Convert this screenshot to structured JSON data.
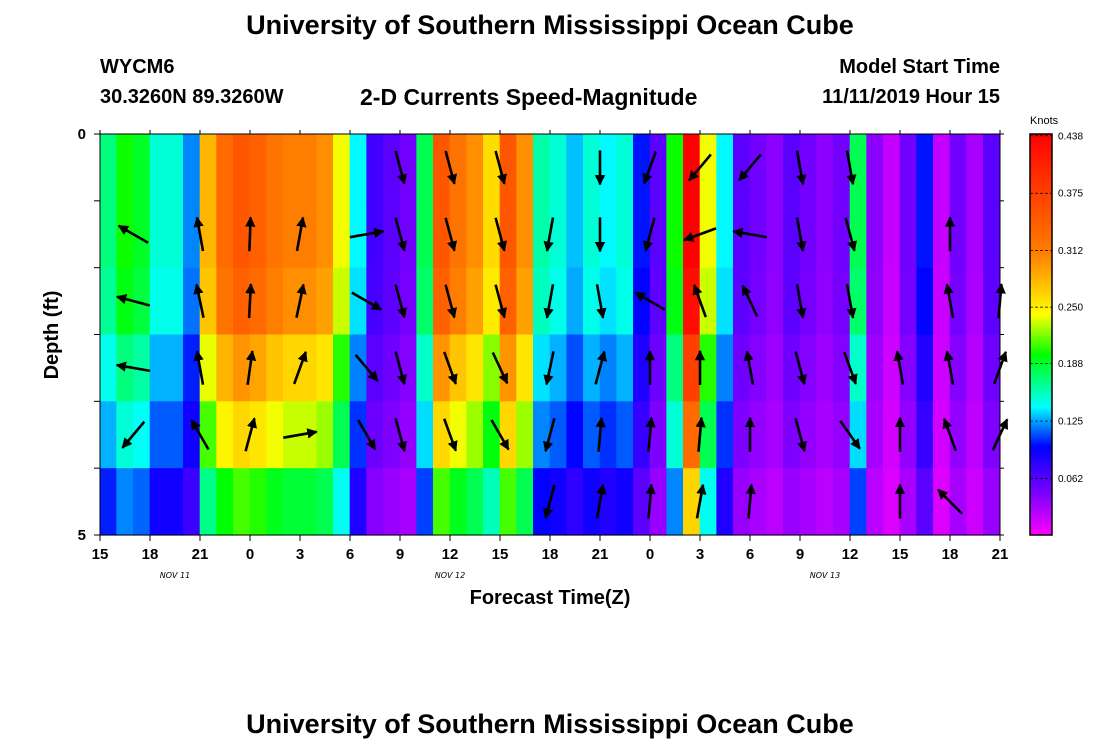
{
  "header": {
    "title": "University of Southern Mississippi Ocean Cube",
    "station_id": "WYCM6",
    "coords": "30.3260N 89.3260W",
    "plot_title": "2-D Currents Speed-Magnitude",
    "model_label": "Model Start Time",
    "model_time": "11/11/2019 Hour 15"
  },
  "footer": {
    "title": "University of Southern Mississippi Ocean Cube"
  },
  "chart_data": {
    "type": "heatmap",
    "xlabel": "Forecast Time(Z)",
    "ylabel": "Depth (ft)",
    "colorbar_label": "Knots",
    "x_ticks": [
      "15",
      "18",
      "21",
      "0",
      "3",
      "6",
      "9",
      "12",
      "15",
      "18",
      "21",
      "0",
      "3",
      "6",
      "9",
      "12",
      "15",
      "18",
      "21"
    ],
    "date_labels": [
      {
        "label": "NOV 11",
        "at_hour_offset": 4.5
      },
      {
        "label": "NOV 12",
        "at_hour_offset": 21
      },
      {
        "label": "NOV 13",
        "at_hour_offset": 43.5
      }
    ],
    "y_ticks": [
      "0",
      "5"
    ],
    "ylim": [
      0,
      5
    ],
    "colorbar_ticks": [
      "0.438",
      "0.375",
      "0.312",
      "0.250",
      "0.188",
      "0.125",
      "0.062"
    ],
    "vmin": 0.0,
    "vmax": 0.44,
    "x_range_hours": [
      0,
      54
    ],
    "time_step_hours": 1,
    "colors": {
      "arrow": "#000000",
      "axis": "#000000"
    },
    "speed_profile": [
      0.17,
      0.2,
      0.19,
      0.15,
      0.15,
      0.12,
      0.28,
      0.33,
      0.35,
      0.34,
      0.32,
      0.31,
      0.31,
      0.3,
      0.24,
      0.14,
      0.07,
      0.06,
      0.05,
      0.18,
      0.35,
      0.32,
      0.3,
      0.26,
      0.35,
      0.3,
      0.16,
      0.15,
      0.13,
      0.15,
      0.14,
      0.15,
      0.1,
      0.06,
      0.2,
      0.44,
      0.24,
      0.14,
      0.06,
      0.05,
      0.04,
      0.06,
      0.05,
      0.04,
      0.05,
      0.18,
      0.04,
      0.02,
      0.05,
      0.1,
      0.02,
      0.05,
      0.03,
      0.06,
      0.05
    ],
    "layer_factors": [
      1.0,
      1.0,
      0.97,
      0.85,
      0.75,
      0.6
    ],
    "arrows": [
      {
        "hour": 2,
        "row": 1,
        "dir": -60
      },
      {
        "hour": 2,
        "row": 2,
        "dir": -75
      },
      {
        "hour": 2,
        "row": 3,
        "dir": -80
      },
      {
        "hour": 2,
        "row": 4,
        "dir": -140
      },
      {
        "hour": 6,
        "row": 1,
        "dir": -10
      },
      {
        "hour": 6,
        "row": 2,
        "dir": -12
      },
      {
        "hour": 6,
        "row": 3,
        "dir": -10
      },
      {
        "hour": 6,
        "row": 4,
        "dir": -30
      },
      {
        "hour": 9,
        "row": 1,
        "dir": 2
      },
      {
        "hour": 9,
        "row": 2,
        "dir": 3
      },
      {
        "hour": 9,
        "row": 3,
        "dir": 8
      },
      {
        "hour": 9,
        "row": 4,
        "dir": 15
      },
      {
        "hour": 12,
        "row": 1,
        "dir": 10
      },
      {
        "hour": 12,
        "row": 2,
        "dir": 12
      },
      {
        "hour": 12,
        "row": 3,
        "dir": 20
      },
      {
        "hour": 12,
        "row": 4,
        "dir": 80
      },
      {
        "hour": 16,
        "row": 1,
        "dir": 80
      },
      {
        "hour": 16,
        "row": 2,
        "dir": 120
      },
      {
        "hour": 16,
        "row": 3,
        "dir": 140
      },
      {
        "hour": 16,
        "row": 4,
        "dir": 150
      },
      {
        "hour": 18,
        "row": 0,
        "dir": 165
      },
      {
        "hour": 18,
        "row": 1,
        "dir": 165
      },
      {
        "hour": 18,
        "row": 2,
        "dir": 165
      },
      {
        "hour": 18,
        "row": 3,
        "dir": 165
      },
      {
        "hour": 18,
        "row": 4,
        "dir": 165
      },
      {
        "hour": 21,
        "row": 0,
        "dir": 165
      },
      {
        "hour": 21,
        "row": 1,
        "dir": 165
      },
      {
        "hour": 21,
        "row": 2,
        "dir": 165
      },
      {
        "hour": 21,
        "row": 3,
        "dir": 160
      },
      {
        "hour": 21,
        "row": 4,
        "dir": 160
      },
      {
        "hour": 24,
        "row": 0,
        "dir": 165
      },
      {
        "hour": 24,
        "row": 1,
        "dir": 165
      },
      {
        "hour": 24,
        "row": 2,
        "dir": 165
      },
      {
        "hour": 24,
        "row": 3,
        "dir": 155
      },
      {
        "hour": 24,
        "row": 4,
        "dir": 150
      },
      {
        "hour": 27,
        "row": 1,
        "dir": -170
      },
      {
        "hour": 27,
        "row": 2,
        "dir": -170
      },
      {
        "hour": 27,
        "row": 3,
        "dir": -168
      },
      {
        "hour": 27,
        "row": 4,
        "dir": -165
      },
      {
        "hour": 27,
        "row": 5,
        "dir": -165
      },
      {
        "hour": 30,
        "row": 0,
        "dir": 180
      },
      {
        "hour": 30,
        "row": 1,
        "dir": 180
      },
      {
        "hour": 30,
        "row": 2,
        "dir": 170
      },
      {
        "hour": 30,
        "row": 3,
        "dir": 15
      },
      {
        "hour": 30,
        "row": 4,
        "dir": 5
      },
      {
        "hour": 30,
        "row": 5,
        "dir": 10
      },
      {
        "hour": 33,
        "row": 0,
        "dir": -160
      },
      {
        "hour": 33,
        "row": 1,
        "dir": -165
      },
      {
        "hour": 33,
        "row": 2,
        "dir": -60
      },
      {
        "hour": 33,
        "row": 3,
        "dir": 0
      },
      {
        "hour": 33,
        "row": 4,
        "dir": 5
      },
      {
        "hour": 33,
        "row": 5,
        "dir": 5
      },
      {
        "hour": 36,
        "row": 0,
        "dir": -140
      },
      {
        "hour": 36,
        "row": 1,
        "dir": -110
      },
      {
        "hour": 36,
        "row": 2,
        "dir": -20
      },
      {
        "hour": 36,
        "row": 3,
        "dir": 0
      },
      {
        "hour": 36,
        "row": 4,
        "dir": 5
      },
      {
        "hour": 36,
        "row": 5,
        "dir": 10
      },
      {
        "hour": 39,
        "row": 0,
        "dir": -140
      },
      {
        "hour": 39,
        "row": 1,
        "dir": -80
      },
      {
        "hour": 39,
        "row": 2,
        "dir": -25
      },
      {
        "hour": 39,
        "row": 3,
        "dir": -10
      },
      {
        "hour": 39,
        "row": 4,
        "dir": 0
      },
      {
        "hour": 39,
        "row": 5,
        "dir": 5
      },
      {
        "hour": 42,
        "row": 0,
        "dir": 170
      },
      {
        "hour": 42,
        "row": 1,
        "dir": 170
      },
      {
        "hour": 42,
        "row": 2,
        "dir": 170
      },
      {
        "hour": 42,
        "row": 3,
        "dir": 165
      },
      {
        "hour": 42,
        "row": 4,
        "dir": 165
      },
      {
        "hour": 45,
        "row": 0,
        "dir": 170
      },
      {
        "hour": 45,
        "row": 1,
        "dir": 165
      },
      {
        "hour": 45,
        "row": 2,
        "dir": 170
      },
      {
        "hour": 45,
        "row": 3,
        "dir": 160
      },
      {
        "hour": 45,
        "row": 4,
        "dir": 145
      },
      {
        "hour": 48,
        "row": 3,
        "dir": -10
      },
      {
        "hour": 48,
        "row": 4,
        "dir": 0
      },
      {
        "hour": 48,
        "row": 5,
        "dir": 0
      },
      {
        "hour": 51,
        "row": 1,
        "dir": 0
      },
      {
        "hour": 51,
        "row": 2,
        "dir": -10
      },
      {
        "hour": 51,
        "row": 3,
        "dir": -10
      },
      {
        "hour": 51,
        "row": 4,
        "dir": -20
      },
      {
        "hour": 51,
        "row": 5,
        "dir": -45
      },
      {
        "hour": 54,
        "row": 2,
        "dir": 5
      },
      {
        "hour": 54,
        "row": 3,
        "dir": 20
      },
      {
        "hour": 54,
        "row": 4,
        "dir": 25
      }
    ]
  }
}
